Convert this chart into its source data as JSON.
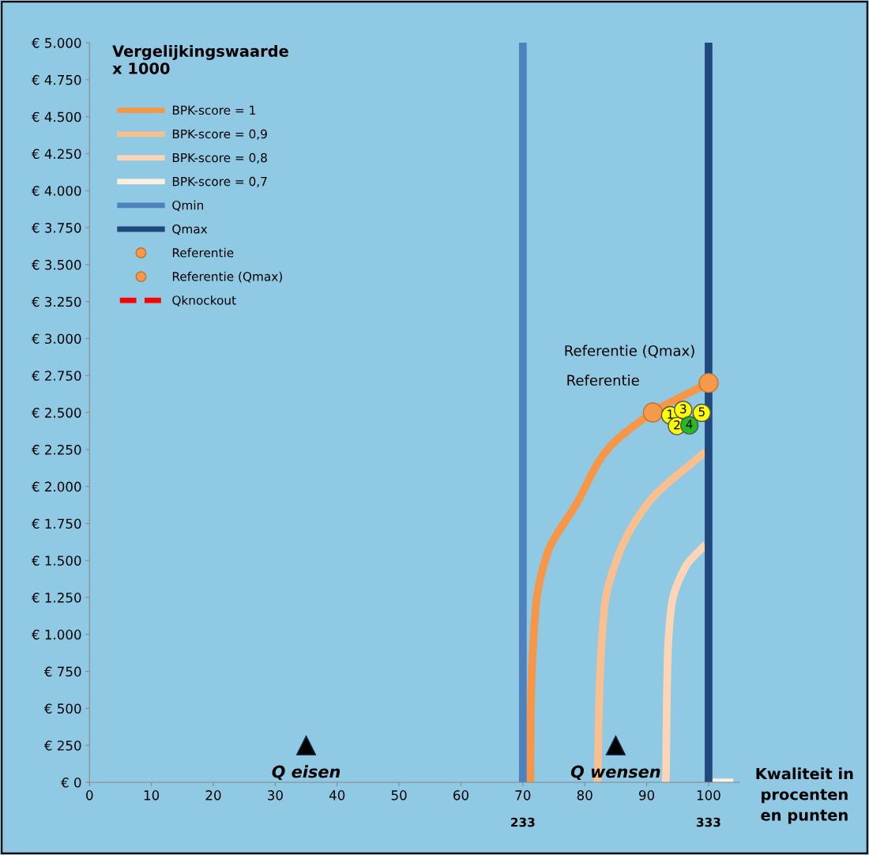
{
  "chart_data": {
    "type": "line",
    "ylabel": "Vergelijkingswaarde\nx 1000",
    "xlabel": "Kwaliteit in\nprocenten\nen punten",
    "xlim": [
      0,
      105
    ],
    "ylim": [
      0,
      5000
    ],
    "xticks": [
      0,
      10,
      20,
      30,
      40,
      50,
      60,
      70,
      80,
      90,
      100
    ],
    "yticks": [
      {
        "value": 0,
        "label": "€ 0"
      },
      {
        "value": 250,
        "label": "€ 250"
      },
      {
        "value": 500,
        "label": "€ 500"
      },
      {
        "value": 750,
        "label": "€ 750"
      },
      {
        "value": 1000,
        "label": "€ 1.000"
      },
      {
        "value": 1250,
        "label": "€ 1.250"
      },
      {
        "value": 1500,
        "label": "€ 1.500"
      },
      {
        "value": 1750,
        "label": "€ 1.750"
      },
      {
        "value": 2000,
        "label": "€ 2.000"
      },
      {
        "value": 2250,
        "label": "€ 2.250"
      },
      {
        "value": 2500,
        "label": "€ 2.500"
      },
      {
        "value": 2750,
        "label": "€ 2.750"
      },
      {
        "value": 3000,
        "label": "€ 3.000"
      },
      {
        "value": 3250,
        "label": "€ 3.250"
      },
      {
        "value": 3500,
        "label": "€ 3.500"
      },
      {
        "value": 3750,
        "label": "€ 3.750"
      },
      {
        "value": 4000,
        "label": "€ 4.000"
      },
      {
        "value": 4250,
        "label": "€ 4.250"
      },
      {
        "value": 4500,
        "label": "€ 4.500"
      },
      {
        "value": 4750,
        "label": "€ 4.750"
      },
      {
        "value": 5000,
        "label": "€ 5.000"
      }
    ],
    "grid": false,
    "legend": "top left",
    "series": [
      {
        "name": "BPK-score = 1",
        "color": "#f79646",
        "x": [
          71.2,
          71.3,
          72.1,
          73.9,
          78.7,
          83.4,
          91,
          100
        ],
        "values": [
          0,
          496,
          1191,
          1541,
          1886,
          2236,
          2500,
          2700
        ]
      },
      {
        "name": "BPK-score = 0,9",
        "color": "#f9bf8f",
        "x": [
          82.1,
          82.3,
          83.2,
          85.5,
          90.2,
          99.5
        ],
        "values": [
          0,
          496,
          1191,
          1541,
          1886,
          2236
        ]
      },
      {
        "name": "BPK-score = 0,8",
        "color": "#fbd5b5",
        "x": [
          93.1,
          93.4,
          94.0,
          96.2,
          99.5
        ],
        "values": [
          0,
          841,
          1191,
          1452,
          1609
        ]
      },
      {
        "name": "BPK-score = 0,7",
        "color": "#fdeee2",
        "x": [
          100.3,
          104
        ],
        "values": [
          0,
          0
        ]
      },
      {
        "name": "Qmin",
        "color": "#4f81bd",
        "x": [
          70,
          70
        ],
        "values": [
          0,
          5000
        ]
      },
      {
        "name": "Qmax",
        "color": "#1f497d",
        "x": [
          100,
          100
        ],
        "values": [
          0,
          5000
        ]
      },
      {
        "name": "Referentie",
        "type": "scatter",
        "marker": "circle",
        "color": "#f59a4a",
        "x": [
          91
        ],
        "values": [
          2500
        ]
      },
      {
        "name": "Referentie (Qmax)",
        "type": "scatter",
        "marker": "circle",
        "color": "#f59a4a",
        "x": [
          100
        ],
        "values": [
          2700
        ]
      },
      {
        "name": "Qknockout",
        "color": "#ff0000",
        "line_style": "dashed",
        "x": [
          null
        ],
        "values": [
          null
        ]
      },
      {
        "type": "scatter",
        "marker": "circle",
        "x": [
          93.8,
          94.9,
          95.9,
          96.9,
          98.9
        ],
        "values": [
          2482,
          2409,
          2518,
          2414,
          2498
        ],
        "colors": [
          "#ffff00",
          "#ffff00",
          "#ffff00",
          "#22bb22",
          "#ffff00"
        ]
      },
      {
        "type": "scatter",
        "marker": "triangle",
        "color": "#000000",
        "x": [
          35,
          85
        ],
        "values": [
          250,
          250
        ]
      }
    ],
    "annotations": [
      {
        "text": "Referentie (Qmax)",
        "x": 100,
        "y": 2700
      },
      {
        "text": "Referentie",
        "x": 91,
        "y": 2500
      },
      {
        "text": "1",
        "x": 93.8,
        "y": 2482
      },
      {
        "text": "2",
        "x": 94.9,
        "y": 2409
      },
      {
        "text": "3",
        "x": 95.9,
        "y": 2518
      },
      {
        "text": "4",
        "x": 96.9,
        "y": 2414
      },
      {
        "text": "5",
        "x": 98.9,
        "y": 2498
      },
      {
        "text": "Q eisen",
        "x": 35,
        "y": 250
      },
      {
        "text": "Q wensen",
        "x": 85,
        "y": 250
      },
      "233",
      "333"
    ]
  }
}
